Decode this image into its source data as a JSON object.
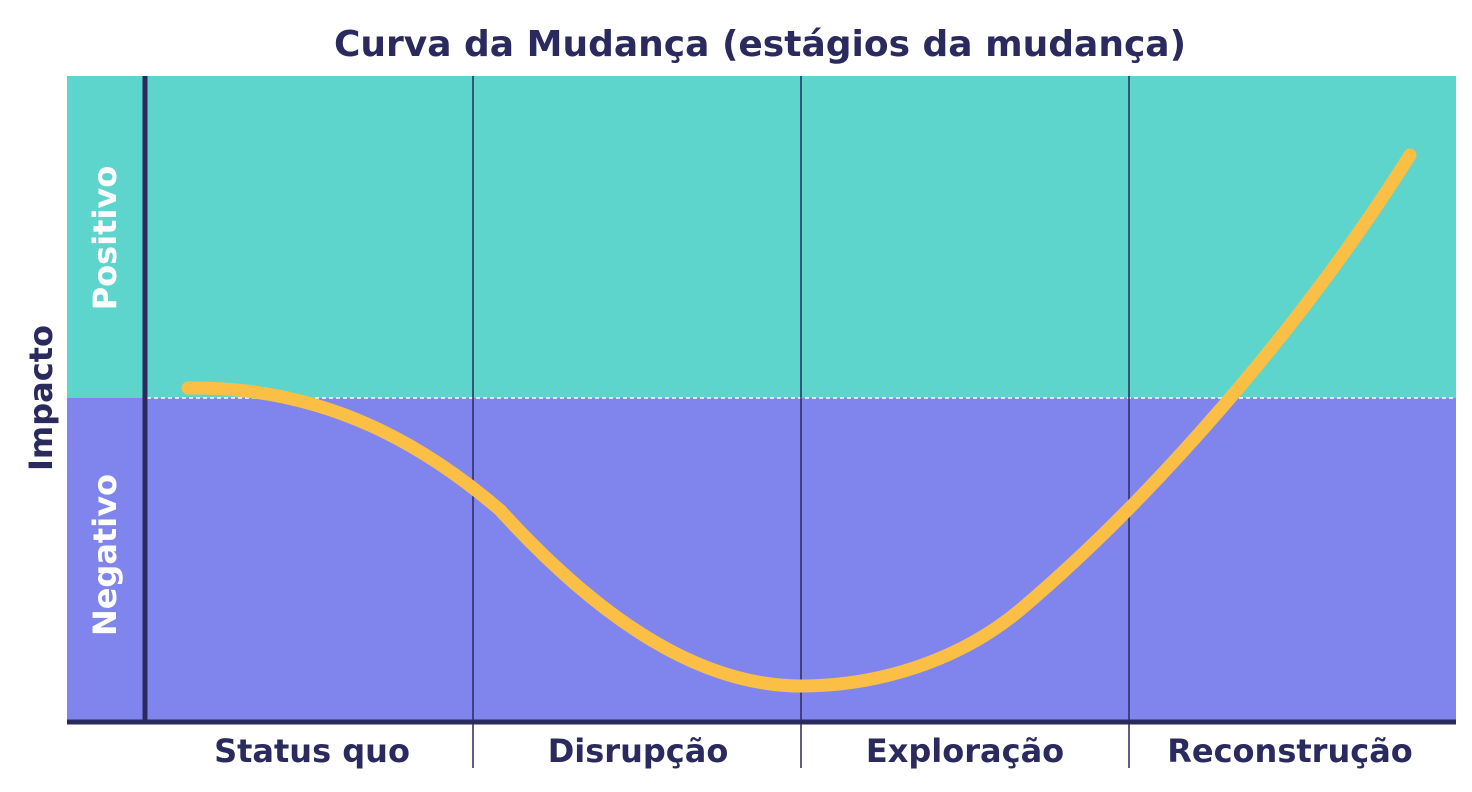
{
  "title": "Curva da Mudança (estágios da mudança)",
  "y_axis_label": "Impacto",
  "zones": {
    "positive_label": "Positivo",
    "negative_label": "Negativo"
  },
  "stages": [
    {
      "label": "Status quo"
    },
    {
      "label": "Disrupção"
    },
    {
      "label": "Exploração"
    },
    {
      "label": "Reconstrução"
    }
  ],
  "colors": {
    "title": "#2a2a5e",
    "positive_zone": "#5dd5cc",
    "negative_zone": "#8085ee",
    "curve": "#fbbf45",
    "axis": "#2a2a5e",
    "zone_label": "#ffffff",
    "baseline": "#ffffff"
  },
  "icons": {
    "curve": "change-curve"
  }
}
